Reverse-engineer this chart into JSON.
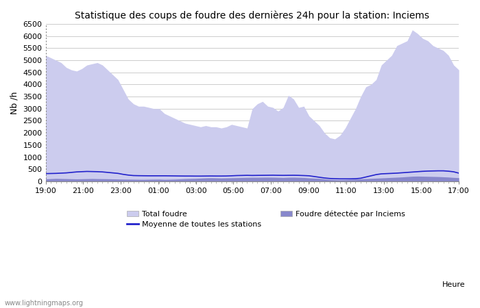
{
  "title": "Statistique des coups de foudre des dernières 24h pour la station: Inciems",
  "ylabel": "Nb /h",
  "xlabel": "Heure",
  "watermark": "www.lightningmaps.org",
  "x_ticks": [
    "19:00",
    "21:00",
    "23:00",
    "01:00",
    "03:00",
    "05:00",
    "07:00",
    "09:00",
    "11:00",
    "13:00",
    "15:00",
    "17:00"
  ],
  "ylim": [
    0,
    6500
  ],
  "yticks": [
    0,
    500,
    1000,
    1500,
    2000,
    2500,
    3000,
    3500,
    4000,
    4500,
    5000,
    5500,
    6000,
    6500
  ],
  "bg_color": "#ffffff",
  "grid_color": "#cccccc",
  "total_foudre_color": "#ccccee",
  "foudre_inciems_color": "#8888cc",
  "moyenne_color": "#2222cc",
  "total_foudre": [
    5200,
    5100,
    5000,
    4900,
    4700,
    4600,
    4550,
    4650,
    4800,
    4850,
    4900,
    4800,
    4600,
    4400,
    4200,
    3800,
    3400,
    3200,
    3100,
    3100,
    3050,
    3000,
    3000,
    2800,
    2700,
    2600,
    2500,
    2400,
    2350,
    2300,
    2250,
    2300,
    2250,
    2250,
    2200,
    2250,
    2350,
    2300,
    2250,
    2200,
    3000,
    3200,
    3300,
    3100,
    3050,
    2900,
    3050,
    3550,
    3400,
    3050,
    3100,
    2700,
    2500,
    2300,
    2000,
    1800,
    1750,
    1900,
    2200,
    2600,
    3000,
    3500,
    3900,
    4000,
    4200,
    4800,
    5000,
    5200,
    5600,
    5700,
    5800,
    6250,
    6100,
    5900,
    5800,
    5600,
    5500,
    5400,
    5200,
    4800,
    4600
  ],
  "foudre_inciems": [
    100,
    110,
    120,
    115,
    110,
    105,
    100,
    105,
    110,
    115,
    110,
    108,
    105,
    100,
    95,
    90,
    88,
    85,
    82,
    80,
    85,
    88,
    90,
    80,
    85,
    90,
    100,
    110,
    115,
    120,
    130,
    140,
    145,
    140,
    135,
    140,
    145,
    150,
    155,
    160,
    165,
    165,
    168,
    170,
    168,
    162,
    155,
    165,
    168,
    162,
    155,
    140,
    130,
    120,
    100,
    80,
    70,
    65,
    70,
    80,
    90,
    100,
    110,
    120,
    130,
    140,
    150,
    160,
    170,
    180,
    195,
    210,
    215,
    210,
    205,
    200,
    195,
    185,
    175,
    160,
    150
  ],
  "moyenne": [
    320,
    325,
    330,
    340,
    350,
    370,
    390,
    400,
    410,
    405,
    400,
    390,
    370,
    350,
    330,
    290,
    260,
    240,
    235,
    232,
    230,
    230,
    230,
    230,
    228,
    225,
    222,
    220,
    220,
    218,
    218,
    220,
    222,
    220,
    220,
    222,
    230,
    240,
    245,
    250,
    245,
    248,
    250,
    252,
    255,
    250,
    248,
    250,
    252,
    248,
    240,
    230,
    200,
    170,
    140,
    120,
    110,
    105,
    105,
    105,
    110,
    130,
    180,
    230,
    280,
    310,
    320,
    330,
    340,
    355,
    370,
    385,
    400,
    415,
    425,
    430,
    435,
    435,
    420,
    395,
    340
  ],
  "n_points": 81
}
